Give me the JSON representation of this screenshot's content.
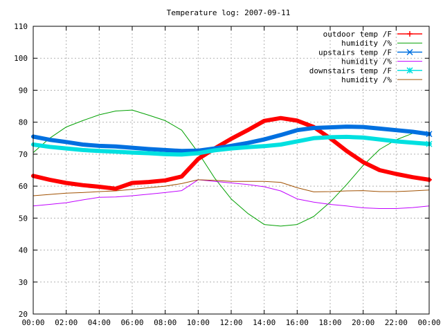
{
  "chart_data": {
    "type": "line",
    "title": "Temperature log: 2007-09-11",
    "xlabel": "",
    "ylabel": "",
    "x_ticks": [
      "00:00",
      "02:00",
      "04:00",
      "06:00",
      "08:00",
      "10:00",
      "12:00",
      "14:00",
      "16:00",
      "18:00",
      "20:00",
      "22:00",
      "00:00"
    ],
    "xlim": [
      0,
      24
    ],
    "ylim": [
      20,
      110
    ],
    "y_ticks": [
      20,
      30,
      40,
      50,
      60,
      70,
      80,
      90,
      100,
      110
    ],
    "grid": true,
    "legend_position": "top-right",
    "x": [
      0,
      1,
      2,
      3,
      4,
      5,
      6,
      7,
      8,
      9,
      10,
      11,
      12,
      13,
      14,
      15,
      16,
      17,
      18,
      19,
      20,
      21,
      22,
      23,
      24
    ],
    "series": [
      {
        "name": "outdoor temp /F",
        "color": "#ff0000",
        "marker": "plus",
        "width": 6,
        "values": [
          63.2,
          62.0,
          61.0,
          60.3,
          59.8,
          59.2,
          61.0,
          61.3,
          61.8,
          63.0,
          68.5,
          71.8,
          74.8,
          77.5,
          80.4,
          81.3,
          80.5,
          78.5,
          75.0,
          71.0,
          67.5,
          65.0,
          63.8,
          62.8,
          62.0
        ]
      },
      {
        "name": "humidity /%",
        "color": "#00a000",
        "marker": "none",
        "width": 1,
        "values": [
          70.5,
          75.0,
          78.5,
          80.5,
          82.3,
          83.5,
          83.8,
          82.2,
          80.5,
          77.5,
          70.5,
          62.5,
          56.0,
          51.5,
          48.0,
          47.5,
          48.0,
          50.5,
          55.0,
          60.5,
          66.5,
          71.5,
          74.5,
          76.5,
          76.5
        ]
      },
      {
        "name": "upstairs temp /F",
        "color": "#0070e0",
        "marker": "x",
        "width": 6,
        "values": [
          75.5,
          74.5,
          73.8,
          73.0,
          72.6,
          72.4,
          72.0,
          71.6,
          71.3,
          71.0,
          71.1,
          71.8,
          72.6,
          73.5,
          74.6,
          76.0,
          77.5,
          78.2,
          78.4,
          78.6,
          78.5,
          78.0,
          77.5,
          77.0,
          76.3
        ]
      },
      {
        "name": "humidity /%",
        "color": "#c000ff",
        "marker": "none",
        "width": 1,
        "values": [
          53.8,
          54.3,
          54.8,
          55.7,
          56.5,
          56.6,
          57.0,
          57.5,
          58.0,
          58.6,
          62.0,
          61.5,
          61.0,
          60.5,
          59.8,
          58.5,
          56.0,
          55.0,
          54.3,
          53.8,
          53.2,
          53.0,
          53.0,
          53.3,
          53.8
        ]
      },
      {
        "name": "downstairs temp /F",
        "color": "#00e0e0",
        "marker": "star",
        "width": 6,
        "values": [
          73.0,
          72.3,
          71.8,
          71.3,
          71.0,
          70.8,
          70.5,
          70.3,
          70.0,
          69.9,
          70.3,
          71.2,
          71.8,
          72.2,
          72.5,
          73.0,
          74.0,
          75.0,
          75.3,
          75.4,
          75.2,
          74.6,
          74.0,
          73.6,
          73.2
        ]
      },
      {
        "name": "humidity /%",
        "color": "#a05000",
        "marker": "none",
        "width": 1,
        "values": [
          57.0,
          57.4,
          57.8,
          58.0,
          58.3,
          58.5,
          59.0,
          59.5,
          60.0,
          60.8,
          62.0,
          61.8,
          61.5,
          61.5,
          61.5,
          61.2,
          59.5,
          58.2,
          58.3,
          58.5,
          58.6,
          58.3,
          58.3,
          58.5,
          58.8
        ]
      }
    ]
  }
}
